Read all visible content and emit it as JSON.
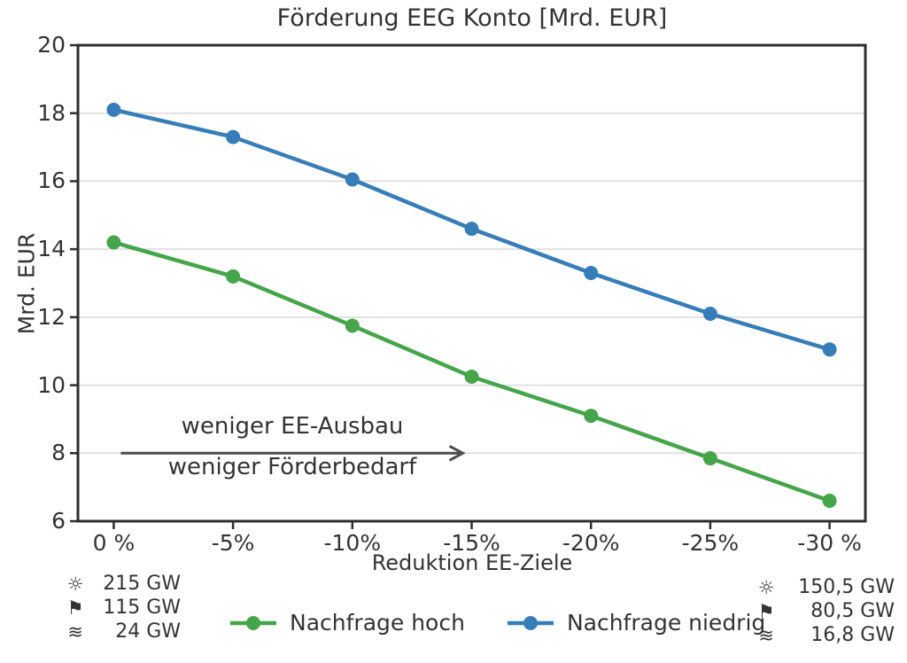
{
  "figure": {
    "background": "#ffffff"
  },
  "chart_data": {
    "type": "line",
    "title": "Förderung EEG Konto [Mrd. EUR]",
    "xlabel": "Reduktion EE-Ziele",
    "ylabel": "Mrd. EUR",
    "categories": [
      "0 %",
      "-5%",
      "-10%",
      "-15%",
      "-20%",
      "-25%",
      "-30 %"
    ],
    "x_numeric": [
      0,
      -5,
      -10,
      -15,
      -20,
      -25,
      -30
    ],
    "ylim": [
      6,
      20
    ],
    "yticks": [
      6,
      8,
      10,
      12,
      14,
      16,
      18,
      20
    ],
    "grid": "horizontal-only",
    "legend_position": "bottom-center",
    "series": [
      {
        "name": "Nachfrage hoch",
        "color": "#46a44a",
        "marker": "circle",
        "values": [
          14.2,
          13.2,
          11.75,
          10.25,
          9.1,
          7.85,
          6.6
        ]
      },
      {
        "name": "Nachfrage niedrig",
        "color": "#377eb8",
        "marker": "circle",
        "values": [
          18.1,
          17.3,
          16.05,
          14.6,
          13.3,
          12.1,
          11.05
        ]
      }
    ],
    "annotation": {
      "line1": "weniger EE-Ausbau",
      "line2": "weniger Förderbedarf",
      "arrow": {
        "y": 8,
        "from_category_index": 0,
        "to_category_index": 3,
        "color": "#4d4d4d"
      }
    }
  },
  "capacity_left": {
    "items": [
      {
        "icon": "sun-icon",
        "glyph": "☼",
        "value": "215 GW"
      },
      {
        "icon": "flag-icon",
        "glyph": "⚑",
        "value": "115 GW"
      },
      {
        "icon": "waves-icon",
        "glyph": "≋",
        "value": "24 GW"
      }
    ]
  },
  "capacity_right": {
    "items": [
      {
        "icon": "sun-icon",
        "glyph": "☼",
        "value": "150,5 GW"
      },
      {
        "icon": "flag-icon",
        "glyph": "⚑",
        "value": "80,5 GW"
      },
      {
        "icon": "waves-icon",
        "glyph": "≋",
        "value": "16,8 GW"
      }
    ]
  },
  "colors": {
    "text": "#333333",
    "grid": "#e1e1e4",
    "spine": "#2e2e2e",
    "tick": "#2e2e2e",
    "arrow": "#4d4d4d"
  }
}
